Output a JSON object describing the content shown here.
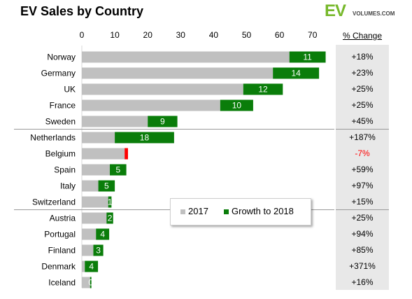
{
  "title": "EV Sales by Country",
  "logo": {
    "ev": "EV",
    "volumes": "VOLUMES.COM"
  },
  "pct_header": "% Change",
  "colors": {
    "base": "#c0c0c0",
    "growth": "#0a7d0a",
    "decline": "#ff0000",
    "pct_bg": "#e8e8e8"
  },
  "legend": {
    "base_label": "2017",
    "growth_label": "Growth to 2018"
  },
  "chart_data": {
    "type": "bar",
    "orientation": "horizontal",
    "stacked": true,
    "xlim": [
      0,
      75
    ],
    "xticks": [
      0,
      10,
      20,
      30,
      40,
      50,
      60,
      70
    ],
    "categories": [
      "Norway",
      "Germany",
      "UK",
      "France",
      "Sweden",
      "Netherlands",
      "Belgium",
      "Spain",
      "Italy",
      "Switzerland",
      "Austria",
      "Portugal",
      "Finland",
      "Denmark",
      "Iceland"
    ],
    "series": [
      {
        "name": "2017",
        "values": [
          63,
          58,
          49,
          42,
          20,
          10,
          14,
          8.5,
          5,
          8,
          7.5,
          4.3,
          3.5,
          0.9,
          2.5
        ]
      },
      {
        "name": "Growth to 2018",
        "values": [
          11,
          14,
          12,
          10,
          9,
          18,
          -1,
          5,
          5,
          1,
          2,
          4,
          3,
          4,
          0.4
        ]
      }
    ],
    "bar_labels": [
      "11",
      "14",
      "12",
      "10",
      "9",
      "18",
      "",
      "5",
      "5",
      "1",
      "2",
      "4",
      "3",
      "4",
      "0"
    ],
    "pct_change": [
      "+18%",
      "+23%",
      "+25%",
      "+25%",
      "+45%",
      "+187%",
      "-7%",
      "+59%",
      "+97%",
      "+15%",
      "+25%",
      "+94%",
      "+85%",
      "+371%",
      "+16%"
    ],
    "group_separators_after": [
      4,
      9
    ]
  }
}
